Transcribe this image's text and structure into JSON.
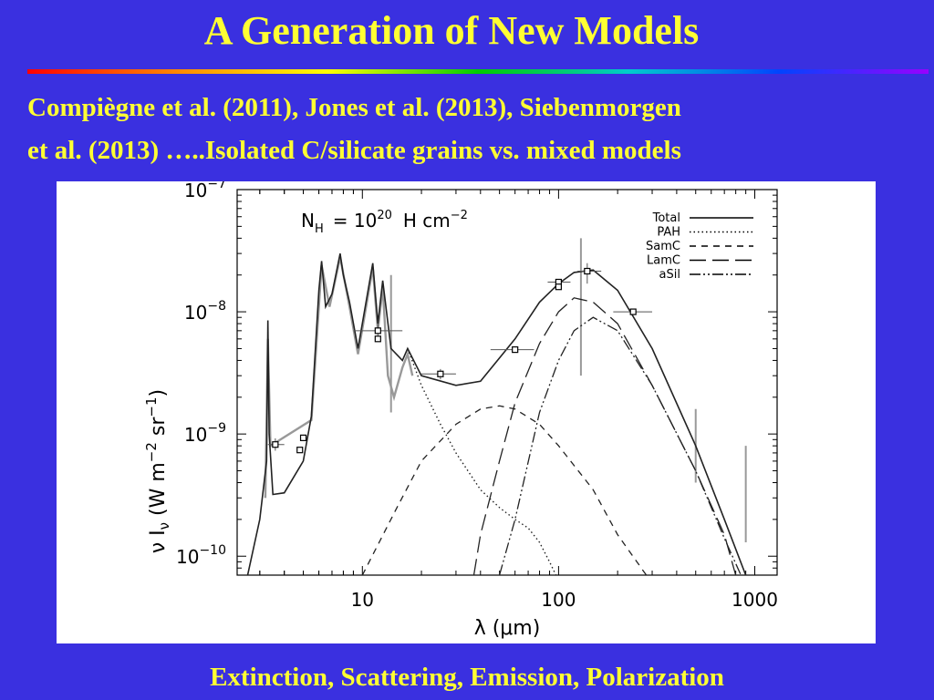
{
  "slide": {
    "title": "A Generation of New Models",
    "subtitle_line1": "Compiègne et al. (2011), Jones et al. (2013), Siebenmorgen",
    "subtitle_line2": "et al. (2013) …..Isolated C/silicate grains vs. mixed models",
    "footer": "Extinction, Scattering, Emission, Polarization"
  },
  "colors": {
    "background": "#3a30e0",
    "title_text": "#ffff33",
    "panel": "#ffffff",
    "observed_data": "#999999"
  },
  "chart_data": {
    "type": "line",
    "annotation_prefix": "N",
    "annotation_sub": "H",
    "annotation_eq": "= 10",
    "annotation_exp": "20",
    "annotation_unit": "H cm",
    "annotation_unit_exp": "−2",
    "xlabel": "λ (μm)",
    "ylabel": "ν I_ν (W m⁻² sr⁻¹)",
    "x_scale": "log",
    "y_scale": "log",
    "xlim": [
      2.3,
      1300
    ],
    "ylim": [
      7e-11,
      1e-07
    ],
    "x_ticks": [
      {
        "value": 10,
        "label": "10"
      },
      {
        "value": 100,
        "label": "100"
      },
      {
        "value": 1000,
        "label": "1000"
      }
    ],
    "y_ticks": [
      {
        "value": 1e-10,
        "mant": "10",
        "exp": "−10"
      },
      {
        "value": 1e-09,
        "mant": "10",
        "exp": "−9"
      },
      {
        "value": 1e-08,
        "mant": "10",
        "exp": "−8"
      },
      {
        "value": 1e-07,
        "mant": "10",
        "exp": "−7"
      }
    ],
    "legend_position": "top-right",
    "series": [
      {
        "name": "Total",
        "dash": "solid",
        "points": [
          [
            2.6,
            7e-11
          ],
          [
            3.0,
            2e-10
          ],
          [
            3.25,
            6e-10
          ],
          [
            3.3,
            8.5e-09
          ],
          [
            3.35,
            1e-09
          ],
          [
            3.5,
            3.2e-10
          ],
          [
            4,
            3.3e-10
          ],
          [
            5,
            6e-10
          ],
          [
            5.5,
            1.4e-09
          ],
          [
            6,
            1.5e-08
          ],
          [
            6.2,
            2.6e-08
          ],
          [
            6.5,
            1.1e-08
          ],
          [
            7,
            1.4e-08
          ],
          [
            7.7,
            3e-08
          ],
          [
            8,
            2e-08
          ],
          [
            8.6,
            1.2e-08
          ],
          [
            9.5,
            5e-09
          ],
          [
            11.3,
            2.5e-08
          ],
          [
            12,
            8e-09
          ],
          [
            12.7,
            1.8e-08
          ],
          [
            14,
            5e-09
          ],
          [
            16,
            4e-09
          ],
          [
            17,
            5e-09
          ],
          [
            20,
            3e-09
          ],
          [
            30,
            2.5e-09
          ],
          [
            40,
            2.7e-09
          ],
          [
            60,
            6e-09
          ],
          [
            80,
            1.2e-08
          ],
          [
            100,
            1.7e-08
          ],
          [
            120,
            2.1e-08
          ],
          [
            150,
            2.2e-08
          ],
          [
            200,
            1.5e-08
          ],
          [
            300,
            5e-09
          ],
          [
            500,
            8e-10
          ],
          [
            700,
            2e-10
          ],
          [
            900,
            7e-11
          ]
        ]
      },
      {
        "name": "PAH",
        "dash": "dotted",
        "points": [
          [
            17,
            5e-09
          ],
          [
            20,
            2.5e-09
          ],
          [
            25,
            1.2e-09
          ],
          [
            30,
            7e-10
          ],
          [
            40,
            3.5e-10
          ],
          [
            50,
            2.5e-10
          ],
          [
            60,
            2e-10
          ],
          [
            70,
            1.7e-10
          ],
          [
            80,
            1.3e-10
          ],
          [
            90,
            9e-11
          ],
          [
            97,
            7e-11
          ]
        ]
      },
      {
        "name": "SamC",
        "dash": "shortdash",
        "points": [
          [
            10,
            7e-11
          ],
          [
            15,
            2.5e-10
          ],
          [
            20,
            6e-10
          ],
          [
            30,
            1.2e-09
          ],
          [
            40,
            1.6e-09
          ],
          [
            50,
            1.7e-09
          ],
          [
            60,
            1.6e-09
          ],
          [
            80,
            1.2e-09
          ],
          [
            100,
            8e-10
          ],
          [
            150,
            3.5e-10
          ],
          [
            200,
            1.5e-10
          ],
          [
            280,
            7e-11
          ]
        ]
      },
      {
        "name": "LamC",
        "dash": "longdash",
        "points": [
          [
            37,
            7e-11
          ],
          [
            40,
            1.5e-10
          ],
          [
            50,
            6e-10
          ],
          [
            60,
            1.8e-09
          ],
          [
            80,
            5.5e-09
          ],
          [
            100,
            1e-08
          ],
          [
            120,
            1.3e-08
          ],
          [
            150,
            1.2e-08
          ],
          [
            200,
            8e-09
          ],
          [
            300,
            2.5e-09
          ],
          [
            500,
            5e-10
          ],
          [
            700,
            1.5e-10
          ],
          [
            800,
            7e-11
          ]
        ]
      },
      {
        "name": "aSil",
        "dash": "dashdotdot",
        "points": [
          [
            50,
            7e-11
          ],
          [
            60,
            2e-10
          ],
          [
            80,
            1.5e-09
          ],
          [
            100,
            4e-09
          ],
          [
            120,
            7e-09
          ],
          [
            150,
            9e-09
          ],
          [
            200,
            7e-09
          ],
          [
            300,
            2.5e-09
          ],
          [
            500,
            5e-10
          ],
          [
            700,
            1.4e-10
          ],
          [
            850,
            7e-11
          ]
        ]
      }
    ],
    "observations": [
      {
        "x": 3.6,
        "y": 8.2e-10,
        "xerr": [
          3.3,
          4.0
        ],
        "yerr": [
          7.3e-10,
          9.2e-10
        ]
      },
      {
        "x": 4.8,
        "y": 7.4e-10
      },
      {
        "x": 5.0,
        "y": 9.3e-10
      },
      {
        "x": 12,
        "y": 7e-09,
        "xerr": [
          9,
          16
        ],
        "yerr": [
          6e-09,
          8e-09
        ]
      },
      {
        "x": 12,
        "y": 6e-09
      },
      {
        "x": 25,
        "y": 3.1e-09,
        "xerr": [
          20,
          30
        ],
        "yerr": [
          2.8e-09,
          3.4e-09
        ]
      },
      {
        "x": 60,
        "y": 4.9e-09,
        "xerr": [
          45,
          75
        ]
      },
      {
        "x": 100,
        "y": 1.75e-08,
        "xerr": [
          88,
          115
        ]
      },
      {
        "x": 100,
        "y": 1.6e-08
      },
      {
        "x": 140,
        "y": 2.15e-08,
        "xerr": [
          125,
          165
        ],
        "yerr": [
          1.7e-08,
          2.5e-08
        ]
      },
      {
        "x": 240,
        "y": 1e-08,
        "xerr": [
          190,
          300
        ]
      }
    ],
    "observed_spectrum": {
      "name": "observed",
      "points": [
        [
          3.2,
          3e-10
        ],
        [
          3.3,
          6e-09
        ],
        [
          3.4,
          8e-10
        ],
        [
          5.5,
          1.3e-09
        ],
        [
          6.2,
          2.4e-08
        ],
        [
          6.8,
          1.1e-08
        ],
        [
          7.7,
          2.8e-08
        ],
        [
          8.6,
          1.1e-08
        ],
        [
          9.5,
          4.5e-09
        ],
        [
          11.3,
          2.3e-08
        ],
        [
          12,
          7e-09
        ],
        [
          12.7,
          1.6e-08
        ],
        [
          13.5,
          3e-09
        ],
        [
          14.5,
          2e-09
        ],
        [
          16,
          3.5e-09
        ],
        [
          17,
          4.5e-09
        ],
        [
          18,
          3e-09
        ]
      ],
      "spikes": [
        [
          14,
          1.5e-09,
          2e-08
        ],
        [
          130,
          3e-09,
          4e-08
        ],
        [
          500,
          4e-10,
          1.6e-09
        ],
        [
          900,
          1.3e-10,
          8e-10
        ]
      ]
    }
  }
}
